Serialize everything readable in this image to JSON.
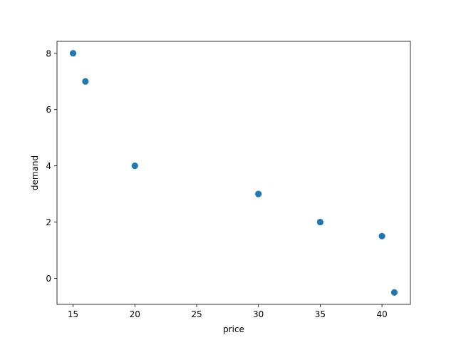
{
  "chart_data": {
    "type": "scatter",
    "title": "",
    "xlabel": "price",
    "ylabel": "demand",
    "x": [
      15,
      16,
      20,
      30,
      35,
      40,
      41
    ],
    "y": [
      8,
      7,
      4,
      3,
      2,
      1.5,
      -0.5
    ],
    "xlim": [
      13.7,
      42.3
    ],
    "ylim": [
      -0.925,
      8.425
    ],
    "xticks": [
      15,
      20,
      25,
      30,
      35,
      40
    ],
    "yticks": [
      0,
      2,
      4,
      6,
      8
    ],
    "xtick_labels": [
      "15",
      "20",
      "25",
      "30",
      "35",
      "40"
    ],
    "ytick_labels": [
      "0",
      "2",
      "4",
      "6",
      "8"
    ],
    "grid": false,
    "legend": "none",
    "marker_color": "#1f77b4"
  }
}
